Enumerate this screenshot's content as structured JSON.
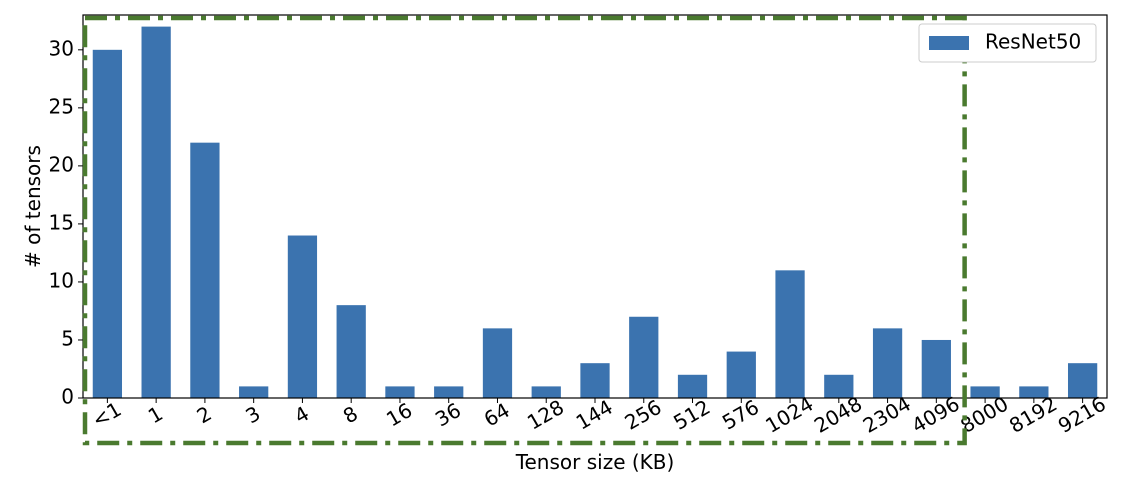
{
  "chart_data": {
    "type": "bar",
    "xlabel": "Tensor size (KB)",
    "ylabel": "# of tensors",
    "categories": [
      "<1",
      "1",
      "2",
      "3",
      "4",
      "8",
      "16",
      "36",
      "64",
      "128",
      "144",
      "256",
      "512",
      "576",
      "1024",
      "2048",
      "2304",
      "4096",
      "8000",
      "8192",
      "9216"
    ],
    "series": [
      {
        "name": "ResNet50",
        "values": [
          30,
          32,
          22,
          1,
          14,
          8,
          1,
          1,
          6,
          1,
          3,
          7,
          2,
          4,
          11,
          2,
          6,
          5,
          1,
          1,
          3
        ],
        "color": "#3b73af"
      }
    ],
    "ylim": [
      0,
      33
    ],
    "yticks": [
      0,
      5,
      10,
      15,
      20,
      25,
      30
    ],
    "grid": false,
    "legend_position": "top-right",
    "highlight": {
      "style": "dash-dot",
      "color": "#4a7a2f",
      "covers_categories": [
        "<1",
        "4096"
      ]
    }
  }
}
